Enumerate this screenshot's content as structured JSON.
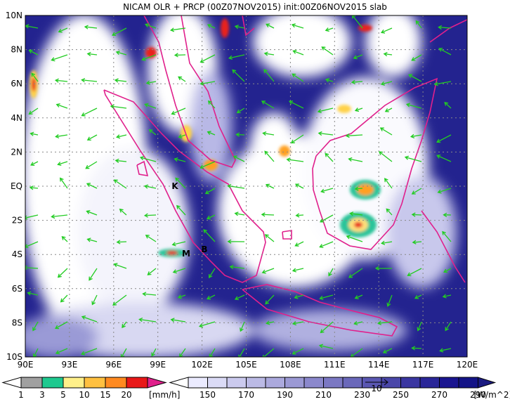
{
  "header": {
    "title": "NICAM OLR + PRCP (00Z07NOV2015) init:00Z06NOV2015 slab"
  },
  "map": {
    "lat_labels": [
      "10N",
      "8N",
      "6N",
      "4N",
      "2N",
      "EQ",
      "2S",
      "4S",
      "6S",
      "8S",
      "10S"
    ],
    "lon_labels": [
      "90E",
      "93E",
      "96E",
      "99E",
      "102E",
      "105E",
      "108E",
      "111E",
      "114E",
      "117E",
      "120E"
    ],
    "places": [
      "K",
      "M",
      "B"
    ]
  },
  "precip_legend": {
    "labels": [
      1,
      3,
      5,
      10,
      15,
      20
    ],
    "unit": "[mm/h]"
  },
  "olr_legend": {
    "labels": [
      150,
      170,
      190,
      210,
      230,
      250,
      270,
      290
    ],
    "unit": "[W/m^2]",
    "vector_label": "10"
  }
}
